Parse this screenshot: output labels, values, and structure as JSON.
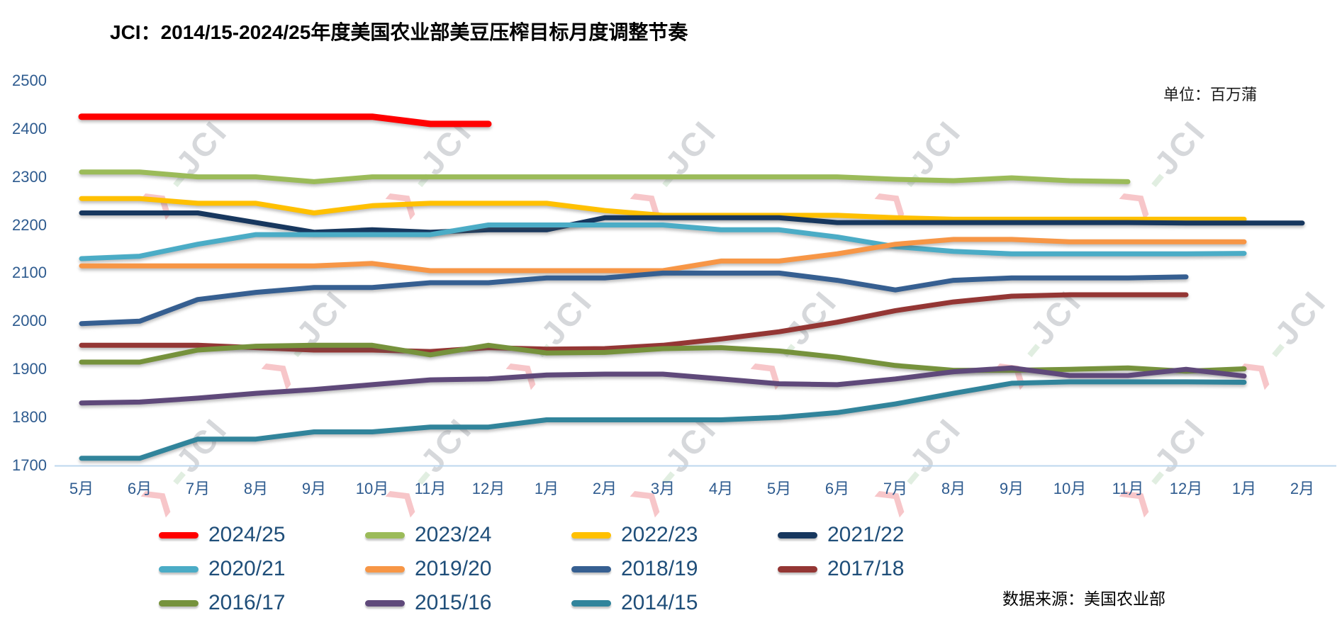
{
  "title": "JCI：2014/15-2024/25年度美国农业部美豆压榨目标月度调整节奏",
  "unit_label": "单位：百万蒲",
  "source_label": "数据来源：美国农业部",
  "watermark_text": "JCI",
  "accent_colors": {
    "axis_text": "#2e5b8f",
    "legend_text": "#1f4e79",
    "axis_line": "#bdd7ee",
    "title_text": "#000000"
  },
  "chart_data": {
    "type": "line",
    "title": "JCI：2014/15-2024/25年度美国农业部美豆压榨目标月度调整节奏",
    "unit": "百万蒲",
    "source": "美国农业部",
    "x_labels": [
      "5月",
      "6月",
      "7月",
      "8月",
      "9月",
      "10月",
      "11月",
      "12月",
      "1月",
      "2月",
      "3月",
      "4月",
      "5月",
      "6月",
      "7月",
      "8月",
      "9月",
      "10月",
      "11月",
      "12月",
      "1月",
      "2月"
    ],
    "y_ticks": [
      1700,
      1800,
      1900,
      2000,
      2100,
      2200,
      2300,
      2400,
      2500
    ],
    "ylim": [
      1700,
      2500
    ],
    "grid": false,
    "legend_position": "bottom",
    "series": [
      {
        "name": "2024/25",
        "color": "#ff0000",
        "values": [
          2425,
          2425,
          2425,
          2425,
          2425,
          2425,
          2410,
          2410
        ]
      },
      {
        "name": "2023/24",
        "color": "#9bbb59",
        "values": [
          2310,
          2310,
          2300,
          2300,
          2290,
          2300,
          2300,
          2300,
          2300,
          2300,
          2300,
          2300,
          2300,
          2300,
          2295,
          2292,
          2298,
          2292,
          2290
        ]
      },
      {
        "name": "2022/23",
        "color": "#ffc000",
        "values": [
          2255,
          2255,
          2245,
          2245,
          2225,
          2240,
          2245,
          2245,
          2245,
          2230,
          2220,
          2220,
          2220,
          2220,
          2215,
          2212,
          2212,
          2212,
          2212,
          2212,
          2212
        ]
      },
      {
        "name": "2021/22",
        "color": "#17375e",
        "values": [
          2225,
          2225,
          2225,
          2205,
          2185,
          2190,
          2185,
          2190,
          2190,
          2215,
          2215,
          2215,
          2215,
          2205,
          2205,
          2205,
          2205,
          2205,
          2205,
          2204,
          2204,
          2204
        ]
      },
      {
        "name": "2020/21",
        "color": "#4bacc6",
        "values": [
          2130,
          2135,
          2160,
          2180,
          2180,
          2180,
          2180,
          2200,
          2200,
          2200,
          2200,
          2190,
          2190,
          2175,
          2155,
          2145,
          2140,
          2140,
          2140,
          2140,
          2141
        ]
      },
      {
        "name": "2019/20",
        "color": "#f79646",
        "values": [
          2115,
          2115,
          2115,
          2115,
          2115,
          2120,
          2105,
          2105,
          2105,
          2105,
          2105,
          2125,
          2125,
          2140,
          2160,
          2170,
          2170,
          2165,
          2165,
          2165,
          2165
        ]
      },
      {
        "name": "2018/19",
        "color": "#365f91",
        "values": [
          1995,
          2000,
          2045,
          2060,
          2070,
          2070,
          2080,
          2080,
          2090,
          2090,
          2100,
          2100,
          2100,
          2085,
          2065,
          2085,
          2090,
          2090,
          2090,
          2092
        ]
      },
      {
        "name": "2017/18",
        "color": "#943634",
        "values": [
          1950,
          1950,
          1950,
          1945,
          1940,
          1940,
          1937,
          1945,
          1942,
          1943,
          1950,
          1963,
          1978,
          1998,
          2022,
          2040,
          2052,
          2055,
          2055,
          2055
        ]
      },
      {
        "name": "2016/17",
        "color": "#76923c",
        "values": [
          1915,
          1915,
          1940,
          1948,
          1950,
          1950,
          1930,
          1950,
          1934,
          1935,
          1943,
          1945,
          1938,
          1925,
          1908,
          1898,
          1898,
          1900,
          1903,
          1896,
          1901
        ]
      },
      {
        "name": "2015/16",
        "color": "#5f497a",
        "values": [
          1830,
          1832,
          1840,
          1850,
          1858,
          1868,
          1878,
          1880,
          1888,
          1890,
          1890,
          1880,
          1870,
          1868,
          1880,
          1895,
          1903,
          1887,
          1887,
          1900,
          1886
        ]
      },
      {
        "name": "2014/15",
        "color": "#31849b",
        "values": [
          1715,
          1715,
          1755,
          1755,
          1770,
          1770,
          1780,
          1780,
          1795,
          1795,
          1795,
          1795,
          1800,
          1810,
          1828,
          1850,
          1871,
          1874,
          1874,
          1874,
          1873
        ]
      }
    ]
  }
}
